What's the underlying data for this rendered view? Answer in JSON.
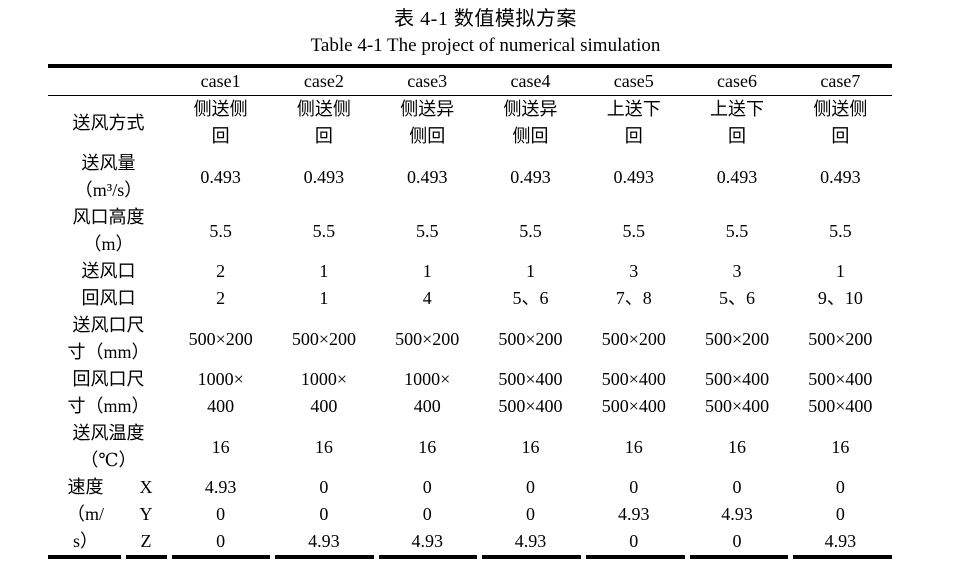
{
  "title_cn": "表 4-1 数值模拟方案",
  "title_en": "Table 4-1 The project of numerical simulation",
  "table": {
    "corner": "",
    "header": [
      "case1",
      "case2",
      "case3",
      "case4",
      "case5",
      "case6",
      "case7"
    ],
    "rows": [
      {
        "label": "送风方式",
        "values": [
          "侧送侧\n回",
          "侧送侧\n回",
          "侧送异\n侧回",
          "侧送异\n侧回",
          "上送下\n回",
          "上送下\n回",
          "侧送侧\n回"
        ]
      },
      {
        "label": "送风量\n（m³/s）",
        "values": [
          "0.493",
          "0.493",
          "0.493",
          "0.493",
          "0.493",
          "0.493",
          "0.493"
        ]
      },
      {
        "label": "风口高度\n（m）",
        "values": [
          "5.5",
          "5.5",
          "5.5",
          "5.5",
          "5.5",
          "5.5",
          "5.5"
        ]
      },
      {
        "label": "送风口",
        "values": [
          "2",
          "1",
          "1",
          "1",
          "3",
          "3",
          "1"
        ]
      },
      {
        "label": "回风口",
        "values": [
          "2",
          "1",
          "4",
          "5、6",
          "7、8",
          "5、6",
          "9、10"
        ]
      },
      {
        "label": "送风口尺\n寸（mm）",
        "values": [
          "500×200",
          "500×200",
          "500×200",
          "500×200",
          "500×200",
          "500×200",
          "500×200"
        ]
      },
      {
        "label": "回风口尺\n寸（mm）",
        "values": [
          "1000×\n400",
          "1000×\n400",
          "1000×\n400",
          "500×400\n500×400",
          "500×400\n500×400",
          "500×400\n500×400",
          "500×400\n500×400"
        ]
      },
      {
        "label": "送风温度\n（℃）",
        "values": [
          "16",
          "16",
          "16",
          "16",
          "16",
          "16",
          "16"
        ]
      }
    ],
    "velocity": {
      "label": "速度\n（m/\ns）",
      "subrows": [
        {
          "axis": "X",
          "values": [
            "4.93",
            "0",
            "0",
            "0",
            "0",
            "0",
            "0"
          ]
        },
        {
          "axis": "Y",
          "values": [
            "0",
            "0",
            "0",
            "0",
            "4.93",
            "4.93",
            "0"
          ]
        },
        {
          "axis": "Z",
          "values": [
            "0",
            "4.93",
            "4.93",
            "4.93",
            "0",
            "0",
            "4.93"
          ]
        }
      ]
    }
  }
}
